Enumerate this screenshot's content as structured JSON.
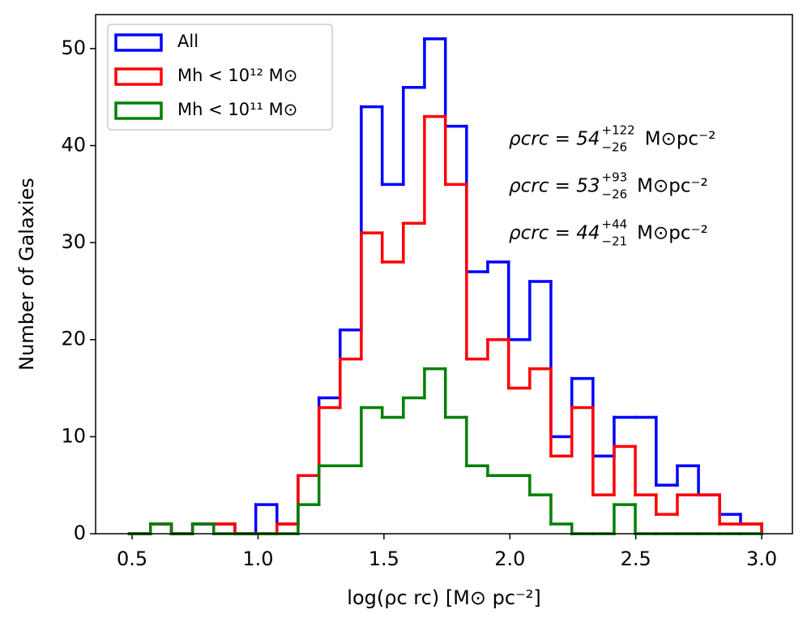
{
  "chart_data": {
    "type": "histogram",
    "xlabel": "log(ρc rc) [M⊙ pc⁻²]",
    "ylabel": "Number of Galaxies",
    "bins": [
      0.489,
      0.573,
      0.656,
      0.74,
      0.824,
      0.908,
      0.991,
      1.075,
      1.159,
      1.242,
      1.326,
      1.41,
      1.493,
      1.577,
      1.661,
      1.744,
      1.828,
      1.912,
      1.995,
      2.079,
      2.163,
      2.246,
      2.33,
      2.414,
      2.498,
      2.581,
      2.665,
      2.749,
      2.833,
      2.916,
      3.0
    ],
    "series": [
      {
        "name": "All",
        "color": "#0000ff",
        "values": [
          0,
          1,
          0,
          1,
          1,
          0,
          3,
          1,
          6,
          14,
          21,
          44,
          36,
          46,
          51,
          42,
          27,
          28,
          20,
          26,
          10,
          16,
          8,
          12,
          12,
          5,
          7,
          4,
          2,
          1
        ]
      },
      {
        "name": "Mh < 10¹² M⊙",
        "color": "#ff0000",
        "values": [
          0,
          1,
          0,
          1,
          1,
          0,
          0,
          1,
          6,
          13,
          18,
          31,
          28,
          32,
          43,
          36,
          18,
          20,
          15,
          17,
          8,
          13,
          4,
          9,
          4,
          2,
          4,
          4,
          1,
          1
        ]
      },
      {
        "name": "Mh < 10¹¹ M⊙",
        "color": "#008000",
        "values": [
          0,
          1,
          0,
          1,
          0,
          0,
          0,
          0,
          3,
          7,
          7,
          13,
          12,
          14,
          17,
          12,
          7,
          6,
          6,
          4,
          1,
          0,
          0,
          3,
          0,
          0,
          0,
          0,
          0,
          0
        ]
      }
    ],
    "annotations": [
      {
        "base": "ρcrc = 54",
        "sup": "+122",
        "sub": "−26",
        "unit": "M⊙pc⁻²",
        "color": "#0000ff"
      },
      {
        "base": "ρcrc = 53",
        "sup": "+93",
        "sub": "−26",
        "unit": "M⊙pc⁻²",
        "color": "#ff0000"
      },
      {
        "base": "ρcrc = 44",
        "sup": "+44",
        "sub": "−21",
        "unit": "M⊙pc⁻²",
        "color": "#008000"
      }
    ],
    "xlim": [
      0.355,
      3.122
    ],
    "ylim": [
      0,
      53.5
    ],
    "xticks": [
      0.5,
      {
        "value": 1,
        "label": "1.0"
      },
      1.5,
      {
        "value": 2,
        "label": "2.0"
      },
      2.5,
      {
        "value": 3,
        "label": "3.0"
      }
    ],
    "yticks": [
      0,
      10,
      20,
      30,
      40,
      50
    ],
    "legend": "upper left"
  }
}
